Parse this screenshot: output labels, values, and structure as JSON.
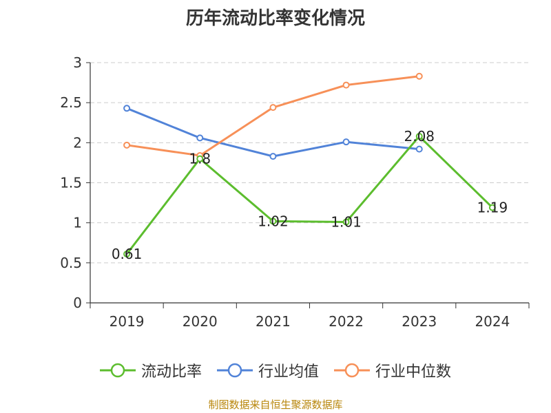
{
  "chart_data": {
    "type": "line",
    "title": "历年流动比率变化情况",
    "categories": [
      "2019",
      "2020",
      "2021",
      "2022",
      "2023",
      "2024"
    ],
    "ylim": [
      0,
      3
    ],
    "yticks": [
      "0",
      "0.5",
      "1",
      "1.5",
      "2",
      "2.5",
      "3"
    ],
    "grid": true,
    "legend_position": "bottom",
    "series": [
      {
        "name": "流动比率",
        "color": "#5cbd2e",
        "values": [
          0.61,
          1.8,
          1.02,
          1.01,
          2.08,
          1.19
        ],
        "labels": [
          "0.61",
          "1.8",
          "1.02",
          "1.01",
          "2.08",
          "1.19"
        ]
      },
      {
        "name": "行业均值",
        "color": "#5183d8",
        "values": [
          2.43,
          2.06,
          1.83,
          2.01,
          1.92,
          null
        ]
      },
      {
        "name": "行业中位数",
        "color": "#f79058",
        "values": [
          1.97,
          1.84,
          2.44,
          2.72,
          2.83,
          null
        ]
      }
    ]
  },
  "footer": {
    "source": "制图数据来自恒生聚源数据库"
  }
}
